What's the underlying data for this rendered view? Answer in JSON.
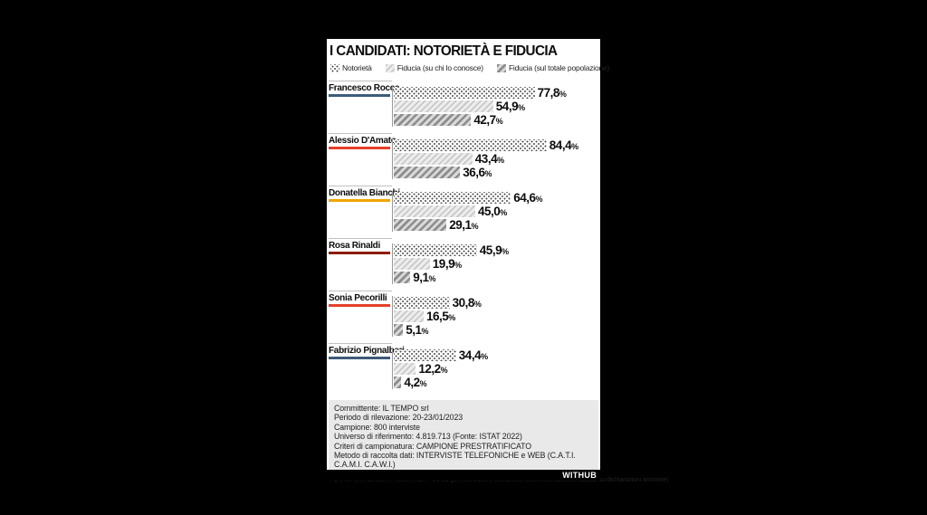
{
  "page": {
    "background": "#000000",
    "panel_background": "#ffffff"
  },
  "header": {
    "title": "I CANDIDATI: NOTORIETÀ E FIDUCIA"
  },
  "legend": [
    {
      "label": "Notorietà",
      "pattern": "dots"
    },
    {
      "label": "Fiducia (su chi lo conosce)",
      "pattern": "light-stripes"
    },
    {
      "label": "Fiducia (sul totale popolazione)",
      "pattern": "dark-stripes"
    }
  ],
  "chart_data": {
    "type": "bar",
    "orientation": "horizontal",
    "unit": "%",
    "xlim": [
      0,
      100
    ],
    "title": "I CANDIDATI: NOTORIETÀ E FIDUCIA",
    "series_names": [
      "Notorietà",
      "Fiducia (su chi lo conosce)",
      "Fiducia (sul totale popolazione)"
    ],
    "candidates": [
      {
        "name": "Francesco Rocca",
        "accent_color": "#3d5a7a",
        "values": [
          77.8,
          54.9,
          42.7
        ],
        "labels": [
          "77,8",
          "54,9",
          "42,7"
        ]
      },
      {
        "name": "Alessio D'Amato",
        "accent_color": "#e6402a",
        "values": [
          84.4,
          43.4,
          36.6
        ],
        "labels": [
          "84,4",
          "43,4",
          "36,6"
        ]
      },
      {
        "name": "Donatella Bianchi",
        "accent_color": "#f0a500",
        "values": [
          64.6,
          45.0,
          29.1
        ],
        "labels": [
          "64,6",
          "45,0",
          "29,1"
        ]
      },
      {
        "name": "Rosa Rinaldi",
        "accent_color": "#8e1b12",
        "values": [
          45.9,
          19.9,
          9.1
        ],
        "labels": [
          "45,9",
          "19,9",
          "9,1"
        ]
      },
      {
        "name": "Sonia Pecorilli",
        "accent_color": "#e6402a",
        "values": [
          30.8,
          16.5,
          5.1
        ],
        "labels": [
          "30,8",
          "16,5",
          "5,1"
        ]
      },
      {
        "name": "Fabrizio Pignalberi",
        "accent_color": "#3d5a7a",
        "values": [
          34.4,
          12.2,
          4.2
        ],
        "labels": [
          "34,4",
          "12,2",
          "4,2"
        ]
      }
    ]
  },
  "methodology": {
    "lines": [
      "Committente: IL TEMPO srl",
      "Periodo di rilevazione: 20-23/01/2023",
      "Campione: 800 interviste",
      "Universo di riferimento: 4.819.713 (Fonte: ISTAT 2022)",
      "Criteri di campionatura: CAMPIONE PRESTRATIFICATO",
      "Metodo di raccolta dati: INTERVISTE TELEFONICHE e WEB (C.A.T.I. C.A.M.I. C.A.W.I.)"
    ]
  },
  "footer": {
    "source": "FONTE: EUROMEDIA RESEARCH - 20-23 gennaio 2023 (Rilevazione scientifica-statistica basata su dichiarazioni anonime)",
    "brand": "WITHUB"
  }
}
